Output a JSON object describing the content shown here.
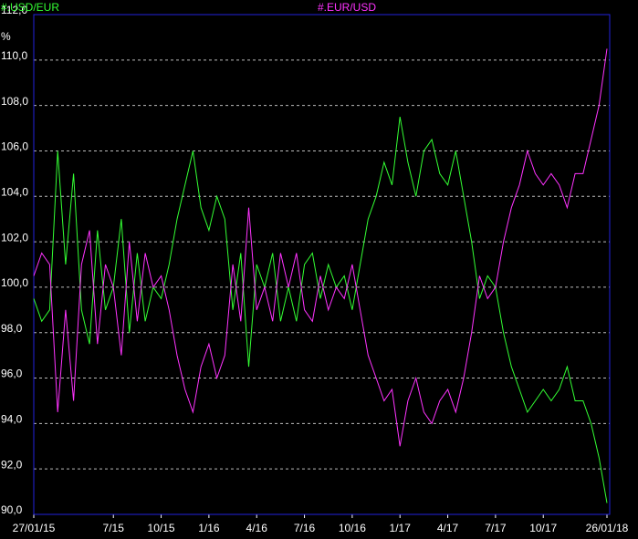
{
  "chart_data": {
    "type": "line",
    "y_unit": "%",
    "categories": [
      "27/01/15",
      null,
      null,
      null,
      null,
      null,
      null,
      null,
      null,
      null,
      "7/15",
      null,
      null,
      null,
      null,
      null,
      "10/15",
      null,
      null,
      null,
      null,
      null,
      "1/16",
      null,
      null,
      null,
      null,
      null,
      "4/16",
      null,
      null,
      null,
      null,
      null,
      "7/16",
      null,
      null,
      null,
      null,
      null,
      "10/16",
      null,
      null,
      null,
      null,
      null,
      "1/17",
      null,
      null,
      null,
      null,
      null,
      "4/17",
      null,
      null,
      null,
      null,
      null,
      "7/17",
      null,
      null,
      null,
      null,
      null,
      "10/17",
      null,
      null,
      null,
      null,
      null,
      null,
      null,
      "26/01/18"
    ],
    "series": [
      {
        "name": "#.USD/EUR",
        "color": "#33ff33",
        "values": [
          99.5,
          98.5,
          99,
          106,
          101,
          105,
          99,
          97.5,
          102.5,
          99,
          100,
          103,
          98,
          101.5,
          98.5,
          100,
          99.5,
          101,
          103,
          104.5,
          106,
          103.5,
          102.5,
          104,
          103,
          99,
          101.5,
          96.5,
          101,
          100,
          101.5,
          98.5,
          100,
          98.5,
          101,
          101.5,
          99.5,
          101,
          100,
          100.5,
          99,
          101,
          103,
          104,
          105.5,
          104.5,
          107.5,
          105.5,
          104,
          106,
          106.5,
          105,
          104.5,
          106,
          104,
          102,
          99.5,
          100.5,
          100,
          98,
          96.5,
          95.5,
          94.5,
          95,
          95.5,
          95,
          95.5,
          96.5,
          95,
          95,
          94,
          92.5,
          90.5
        ]
      },
      {
        "name": "#.EUR/USD",
        "color": "#ff33ff",
        "values": [
          100.5,
          101.5,
          101,
          94.5,
          99,
          95,
          101,
          102.5,
          97.5,
          101,
          100,
          97,
          102,
          98.5,
          101.5,
          100,
          100.5,
          99,
          97,
          95.5,
          94.5,
          96.5,
          97.5,
          96,
          97,
          101,
          98.5,
          103.5,
          99,
          100,
          98.5,
          101.5,
          100,
          101.5,
          99,
          98.5,
          100.5,
          99,
          100,
          99.5,
          101,
          99,
          97,
          96,
          95,
          95.5,
          93,
          95,
          96,
          94.5,
          94,
          95,
          95.5,
          94.5,
          96,
          98,
          100.5,
          99.5,
          100,
          102,
          103.5,
          104.5,
          106,
          105,
          104.5,
          105,
          104.5,
          103.5,
          105,
          105,
          106.5,
          108,
          110.5
        ]
      }
    ],
    "ylim": [
      90,
      112
    ],
    "yticks": [
      {
        "value": 90,
        "label": "90,0"
      },
      {
        "value": 92,
        "label": "92,0"
      },
      {
        "value": 94,
        "label": "94,0"
      },
      {
        "value": 96,
        "label": "96,0"
      },
      {
        "value": 98,
        "label": "98,0"
      },
      {
        "value": 100,
        "label": "100,0"
      },
      {
        "value": 102,
        "label": "102,0"
      },
      {
        "value": 104,
        "label": "104,0"
      },
      {
        "value": 106,
        "label": "106,0"
      },
      {
        "value": 108,
        "label": "108,0"
      },
      {
        "value": 110,
        "label": "110,0"
      },
      {
        "value": 112,
        "label": "112,0"
      }
    ],
    "grid": true
  }
}
